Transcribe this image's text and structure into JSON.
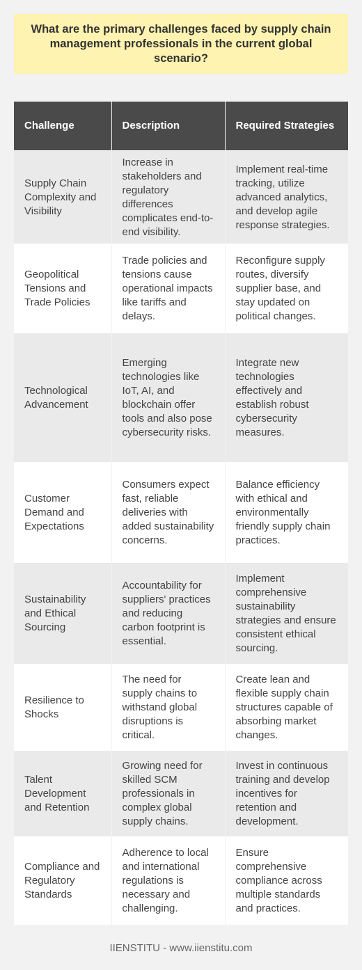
{
  "question": "What are the primary challenges faced by supply chain management professionals in the current global scenario?",
  "table": {
    "headers": [
      "Challenge",
      "Description",
      "Required Strategies"
    ],
    "rows": [
      {
        "challenge": "Supply Chain Complexity and Visibility",
        "description": "Increase in stakeholders and regulatory differences complicates end-to-end visibility.",
        "strategies": "Implement real-time tracking, utilize advanced analytics, and develop agile response strategies."
      },
      {
        "challenge": "Geopolitical Tensions and Trade Policies",
        "description": "Trade policies and tensions cause operational impacts like tariffs and delays.",
        "strategies": "Reconfigure supply routes, diversify supplier base, and stay updated on political changes."
      },
      {
        "challenge": "Technological Advancement",
        "description": "Emerging technologies like IoT, AI, and blockchain offer tools and also pose cybersecurity risks.",
        "strategies": "Integrate new technologies effectively and establish robust cybersecurity measures."
      },
      {
        "challenge": "Customer Demand and Expectations",
        "description": "Consumers expect fast, reliable deliveries with added sustainability concerns.",
        "strategies": "Balance efficiency with ethical and environmentally friendly supply chain practices."
      },
      {
        "challenge": "Sustainability and Ethical Sourcing",
        "description": "Accountability for suppliers' practices and reducing carbon footprint is essential.",
        "strategies": "Implement comprehensive sustainability strategies and ensure consistent ethical sourcing."
      },
      {
        "challenge": "Resilience to Shocks",
        "description": "The need for supply chains to withstand global disruptions is critical.",
        "strategies": "Create lean and flexible supply chain structures capable of absorbing market changes."
      },
      {
        "challenge": "Talent Development and Retention",
        "description": "Growing need for skilled SCM professionals in complex global supply chains.",
        "strategies": "Invest in continuous training and develop incentives for retention and development."
      },
      {
        "challenge": "Compliance and Regulatory Standards",
        "description": "Adherence to local and international regulations is necessary and challenging.",
        "strategies": "Ensure comprehensive compliance across multiple standards and practices."
      }
    ]
  },
  "footer": "IIENSTITU - www.iienstitu.com",
  "colors": {
    "question_bg": "#fef3b0",
    "header_bg": "#4a4a4a",
    "row_odd": "#eaeaea",
    "row_even": "#ffffff",
    "page_bg": "#f2f2f2"
  }
}
